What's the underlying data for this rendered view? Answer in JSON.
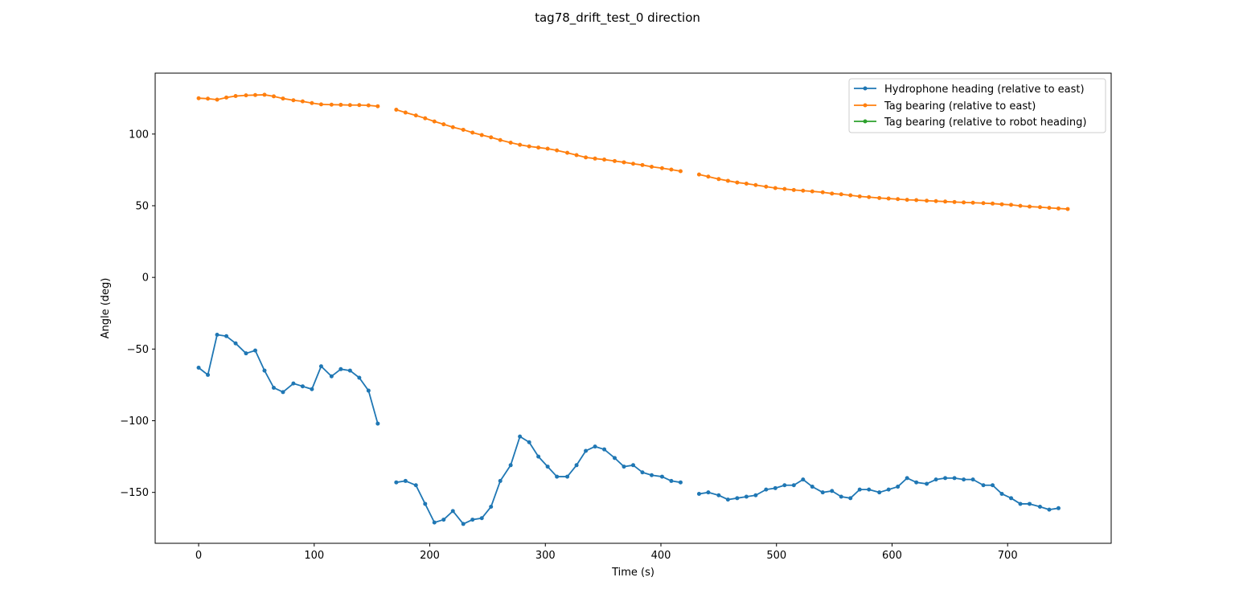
{
  "chart_data": {
    "type": "line",
    "title": "tag78_drift_test_0 direction",
    "xlabel": "Time (s)",
    "ylabel": "Angle (deg)",
    "xlim": [
      -37.6,
      789.6
    ],
    "ylim": [
      -185.5,
      142.5
    ],
    "xticks": [
      0,
      100,
      200,
      300,
      400,
      500,
      600,
      700
    ],
    "yticks": [
      -150,
      -100,
      -50,
      0,
      50,
      100
    ],
    "grid": false,
    "legend_position": "top-right",
    "series": [
      {
        "name": "Hydrophone heading (relative to east)",
        "color": "#1f77b4",
        "segments": [
          {
            "x": [
              0,
              8,
              16,
              24,
              32,
              41,
              49,
              57,
              65,
              73,
              82,
              90,
              98,
              106,
              115,
              123,
              131,
              139,
              147,
              155
            ],
            "y": [
              -63,
              -68,
              -40,
              -41,
              -46,
              -53,
              -51,
              -65,
              -77,
              -80,
              -74,
              -76,
              -78,
              -62,
              -69,
              -64,
              -65,
              -70,
              -79,
              -102
            ]
          },
          {
            "x": [
              171,
              179,
              188,
              196,
              204,
              212,
              220,
              229,
              237,
              245,
              253,
              261,
              270,
              278,
              286,
              294,
              302,
              310,
              319,
              327,
              335,
              343,
              351,
              360,
              368,
              376,
              384,
              392,
              401,
              409,
              417
            ],
            "y": [
              -143,
              -142,
              -145,
              -158,
              -171,
              -169,
              -163,
              -172,
              -169,
              -168,
              -160,
              -142,
              -131,
              -111,
              -115,
              -125,
              -132,
              -139,
              -139,
              -131,
              -121,
              -118,
              -120,
              -126,
              -132,
              -131,
              -136,
              -138,
              -139,
              -142,
              -143
            ]
          },
          {
            "x": [
              433,
              441,
              450,
              458,
              466,
              474,
              482,
              491,
              499,
              507,
              515,
              523,
              531,
              540,
              548,
              556,
              564,
              572,
              580,
              589,
              597,
              605,
              613,
              621,
              630,
              638,
              646,
              654,
              662,
              670,
              679,
              687,
              695,
              703,
              711,
              719,
              728,
              736,
              744
            ],
            "y": [
              -151,
              -150,
              -152,
              -155,
              -154,
              -153,
              -152,
              -148,
              -147,
              -145,
              -145,
              -141,
              -146,
              -150,
              -149,
              -153,
              -154,
              -148,
              -148,
              -150,
              -148,
              -146,
              -140,
              -143,
              -144,
              -141,
              -140,
              -140,
              -141,
              -141,
              -145,
              -145,
              -151,
              -154,
              -158,
              -158,
              -160,
              -162,
              -161
            ]
          }
        ]
      },
      {
        "name": "Tag bearing (relative to east)",
        "color": "#ff7f0e",
        "segments": [
          {
            "x": [
              0,
              8,
              16,
              24,
              32,
              41,
              49,
              57,
              65,
              73,
              82,
              90,
              98,
              106,
              115,
              123,
              131,
              139,
              147,
              155
            ],
            "y": [
              125,
              124.7,
              124,
              125.5,
              126.5,
              127,
              127.2,
              127.4,
              126.3,
              124.8,
              123.6,
              122.8,
              121.6,
              120.7,
              120.5,
              120.4,
              120.2,
              120.2,
              120,
              119.4
            ]
          },
          {
            "x": [
              171,
              179,
              188,
              196,
              204,
              212,
              220,
              229,
              237,
              245,
              253,
              261,
              270,
              278,
              286,
              294,
              302,
              310,
              319,
              327,
              335,
              343,
              351,
              360,
              368,
              376,
              384,
              392,
              401,
              409,
              417
            ],
            "y": [
              117,
              115,
              113,
              111,
              108.8,
              106.8,
              104.8,
              103,
              101,
              99.3,
              97.7,
              95.8,
              94,
              92.5,
              91.4,
              90.6,
              89.8,
              88.6,
              86.9,
              85.3,
              83.7,
              82.9,
              82.2,
              81.2,
              80.3,
              79.3,
              78.4,
              77.2,
              76.2,
              75.2,
              74.1
            ]
          },
          {
            "x": [
              433,
              441,
              450,
              458,
              466,
              474,
              482,
              491,
              499,
              507,
              515,
              523,
              531,
              540,
              548,
              556,
              564,
              572,
              580,
              589,
              597,
              605,
              613,
              621,
              630,
              638,
              646,
              654,
              662,
              670,
              679,
              687,
              695,
              703,
              711,
              719,
              728,
              736,
              744,
              752
            ],
            "y": [
              71.8,
              70.3,
              68.6,
              67.4,
              66.2,
              65.4,
              64.4,
              63.3,
              62.3,
              61.7,
              61,
              60.5,
              60,
              59.4,
              58.5,
              58,
              57.3,
              56.5,
              56,
              55.4,
              55,
              54.6,
              54.1,
              53.9,
              53.5,
              53.2,
              52.9,
              52.6,
              52.3,
              52.1,
              51.8,
              51.5,
              51,
              50.6,
              49.9,
              49.4,
              49,
              48.5,
              48.1,
              47.7
            ]
          }
        ]
      },
      {
        "name": "Tag bearing (relative to robot heading)",
        "color": "#2ca02c",
        "segments": []
      }
    ]
  }
}
